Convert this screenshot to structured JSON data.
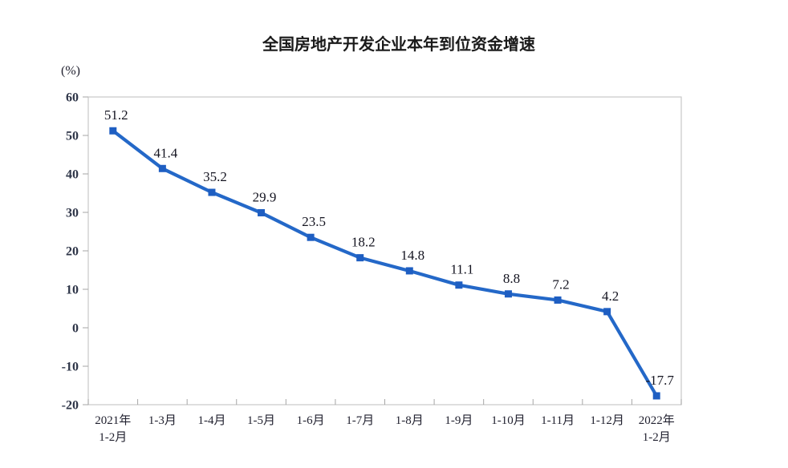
{
  "page": {
    "background": "#ffffff"
  },
  "chart_data": {
    "type": "line",
    "title": "全国房地产开发企业本年到位资金增速",
    "ylabel": "(%)",
    "xlabel": "",
    "categories": [
      "2021年\n1-2月",
      "1-3月",
      "1-4月",
      "1-5月",
      "1-6月",
      "1-7月",
      "1-8月",
      "1-9月",
      "1-10月",
      "1-11月",
      "1-12月",
      "2022年\n1-2月"
    ],
    "values": [
      51.2,
      41.4,
      35.2,
      29.9,
      23.5,
      18.2,
      14.8,
      11.1,
      8.8,
      7.2,
      4.2,
      -17.7
    ],
    "series": [
      {
        "name": "本年到位资金增速",
        "values": [
          51.2,
          41.4,
          35.2,
          29.9,
          23.5,
          18.2,
          14.8,
          11.1,
          8.8,
          7.2,
          4.2,
          -17.7
        ]
      }
    ],
    "ylim": [
      -20,
      60
    ],
    "ytick_step": 10,
    "grid": false,
    "legend_position": "none",
    "marker": "square",
    "colors": {
      "line": "#2468c8",
      "marker": "#1e5ec2",
      "frame": "#c9c9c9",
      "tick": "#a6a6a6",
      "label_text": "#141420",
      "axis_text": "#2e3548",
      "title_text": "#1a1a1a"
    }
  }
}
